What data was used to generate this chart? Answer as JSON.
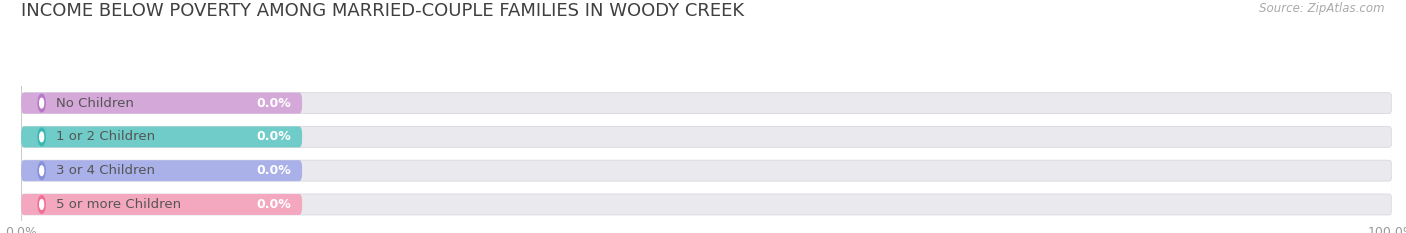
{
  "title": "INCOME BELOW POVERTY AMONG MARRIED-COUPLE FAMILIES IN WOODY CREEK",
  "source": "Source: ZipAtlas.com",
  "categories": [
    "No Children",
    "1 or 2 Children",
    "3 or 4 Children",
    "5 or more Children"
  ],
  "values": [
    0.0,
    0.0,
    0.0,
    0.0
  ],
  "bar_colors": [
    "#d4a8d8",
    "#70ccc8",
    "#aab0e8",
    "#f4a8c0"
  ],
  "dot_colors": [
    "#b878c8",
    "#38b8b0",
    "#8890d8",
    "#f07098"
  ],
  "background_color": "#ffffff",
  "bar_bg_color": "#eaeaee",
  "bar_bg_edge_color": "#d8d8e0",
  "title_color": "#404040",
  "label_color": "#555555",
  "value_color": "#ffffff",
  "tick_color": "#999999",
  "gridline_color": "#cccccc",
  "title_fontsize": 13,
  "label_fontsize": 9.5,
  "value_fontsize": 9,
  "source_fontsize": 8.5
}
